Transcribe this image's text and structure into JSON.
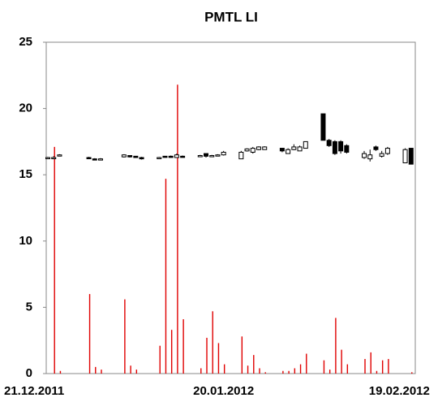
{
  "chart_data": {
    "type": "candlestick",
    "title": "PMTL LI",
    "x": [
      "21.12.2011",
      "22.12.2011",
      "23.12.2011",
      "28.12.2011",
      "29.12.2011",
      "30.12.2011",
      "03.01.2012",
      "04.01.2012",
      "05.01.2012",
      "06.01.2012",
      "09.01.2012",
      "10.01.2012",
      "11.01.2012",
      "12.01.2012",
      "13.01.2012",
      "16.01.2012",
      "17.01.2012",
      "18.01.2012",
      "19.01.2012",
      "20.01.2012",
      "23.01.2012",
      "24.01.2012",
      "25.01.2012",
      "26.01.2012",
      "27.01.2012",
      "30.01.2012",
      "31.01.2012",
      "01.02.2012",
      "02.02.2012",
      "03.02.2012",
      "06.02.2012",
      "07.02.2012",
      "08.02.2012",
      "09.02.2012",
      "10.02.2012",
      "13.02.2012",
      "14.02.2012",
      "15.02.2012",
      "16.02.2012",
      "17.02.2012",
      "20.02.2012",
      "21.02.2012"
    ],
    "open": [
      16.3,
      16.3,
      16.5,
      16.3,
      16.2,
      16.2,
      16.35,
      16.45,
      16.4,
      16.3,
      16.3,
      16.4,
      16.4,
      16.3,
      16.4,
      16.4,
      16.6,
      16.4,
      16.5,
      16.5,
      16.2,
      16.8,
      16.7,
      16.9,
      16.9,
      17.0,
      16.6,
      16.9,
      16.8,
      17.0,
      19.6,
      17.6,
      17.5,
      17.5,
      17.2,
      16.3,
      16.2,
      17.1,
      16.4,
      16.6,
      15.9,
      17.0
    ],
    "high": [
      16.35,
      16.4,
      16.55,
      16.35,
      16.25,
      16.25,
      16.55,
      16.45,
      16.4,
      16.35,
      16.35,
      16.4,
      16.45,
      16.6,
      16.45,
      16.5,
      16.6,
      16.5,
      16.55,
      16.8,
      16.8,
      17.0,
      17.1,
      17.15,
      17.15,
      17.0,
      17.0,
      17.3,
      17.2,
      17.5,
      19.6,
      17.7,
      17.6,
      17.6,
      17.3,
      16.8,
      16.9,
      17.2,
      16.8,
      17.1,
      17.0,
      17.0
    ],
    "low": [
      16.25,
      16.2,
      16.45,
      16.2,
      16.1,
      16.1,
      16.3,
      16.3,
      16.3,
      16.15,
      16.25,
      16.3,
      16.3,
      16.3,
      16.3,
      16.35,
      16.3,
      16.35,
      16.4,
      16.45,
      16.2,
      16.75,
      16.6,
      16.85,
      16.9,
      16.7,
      16.6,
      16.85,
      16.8,
      17.0,
      17.6,
      17.1,
      16.5,
      16.6,
      16.6,
      16.2,
      16.0,
      16.8,
      16.3,
      16.5,
      15.9,
      15.8
    ],
    "close": [
      16.3,
      16.3,
      16.5,
      16.25,
      16.15,
      16.2,
      16.5,
      16.35,
      16.3,
      16.2,
      16.3,
      16.35,
      16.35,
      16.5,
      16.35,
      16.45,
      16.4,
      16.45,
      16.5,
      16.7,
      16.7,
      16.95,
      17.0,
      17.1,
      17.1,
      16.8,
      16.9,
      17.1,
      17.1,
      17.5,
      17.6,
      17.2,
      16.6,
      16.8,
      16.7,
      16.6,
      16.5,
      16.9,
      16.6,
      17.0,
      16.9,
      15.8
    ],
    "volume": [
      0,
      17.1,
      0.2,
      6.0,
      0.5,
      0.3,
      5.6,
      0.6,
      0.3,
      0,
      2.1,
      14.7,
      3.3,
      21.8,
      4.1,
      0.4,
      2.7,
      4.7,
      2.3,
      0.7,
      2.8,
      0.6,
      1.4,
      0.4,
      0.1,
      0.2,
      0.2,
      0.4,
      0.7,
      1.5,
      1.0,
      0.3,
      4.2,
      1.8,
      0.7,
      1.1,
      1.6,
      0.2,
      1.0,
      1.1,
      0,
      0.1
    ],
    "candle_color": "#000000",
    "volume_color": "#e00000",
    "xlim": [
      "21.12.2011",
      "22.02.2012"
    ],
    "xticks": [
      "21.12.2011",
      "20.01.2012",
      "19.02.2012"
    ],
    "ylim": [
      0,
      25
    ],
    "yticks": [
      0,
      5,
      10,
      15,
      20,
      25
    ],
    "grid": false
  }
}
